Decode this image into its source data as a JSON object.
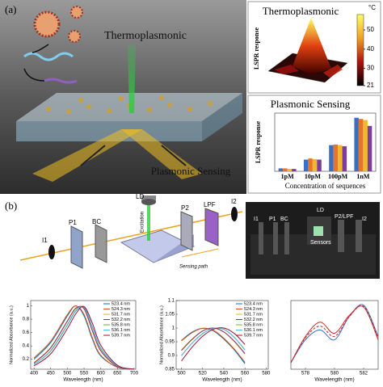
{
  "panel_a": {
    "label": "(a)",
    "thermo_label": "Thermoplasmonic",
    "sensing_label": "Plasmonic Sensing"
  },
  "panel_b": {
    "label": "(b)",
    "setup": {
      "ld": "LD",
      "excitation": "Excitation",
      "i1": "I1",
      "p1": "P1",
      "bc": "BC",
      "p2": "P2",
      "lpf": "LPF",
      "i2": "I2",
      "sensing_path": "Sensing path"
    },
    "photo": {
      "i1": "I1",
      "p1": "P1",
      "bc": "BC",
      "ld": "LD",
      "p2_lpf": "P2/LPF",
      "i2": "I2",
      "sensors": "Sensors"
    }
  },
  "chart_data": [
    {
      "type": "surface",
      "title": "Thermoplasmonic",
      "ylabel": "LSPR response",
      "colorbar_label": "°C",
      "clim": [
        21,
        58
      ],
      "cticks": [
        21,
        30,
        40,
        50
      ],
      "colormap": [
        "#000000",
        "#b01010",
        "#f0a020",
        "#ffff60"
      ]
    },
    {
      "type": "bar",
      "title": "Plasmonic Sensing",
      "ylabel": "LSPR response",
      "xlabel": "Concentration of sequences",
      "categories": [
        "1pM",
        "10pM",
        "100pM",
        "1nM"
      ],
      "ylim": [
        0,
        1
      ],
      "series": [
        {
          "color": "#3b6fc4",
          "values": [
            0.05,
            0.2,
            0.45,
            0.92
          ]
        },
        {
          "color": "#e8742a",
          "values": [
            0.05,
            0.22,
            0.46,
            0.9
          ]
        },
        {
          "color": "#f0b82a",
          "values": [
            0.04,
            0.21,
            0.45,
            0.88
          ]
        },
        {
          "color": "#7b3f99",
          "values": [
            0.04,
            0.2,
            0.43,
            0.78
          ]
        }
      ]
    },
    {
      "type": "line",
      "xlabel": "Wavelength (nm)",
      "ylabel": "Normalized Absorbance (a.u.)",
      "x": [
        400,
        450,
        500,
        525,
        550,
        575,
        600,
        650,
        700
      ],
      "xlim": [
        390,
        705
      ],
      "xticks": [
        400,
        450,
        500,
        550,
        600,
        650,
        700
      ],
      "ylim": [
        0.05,
        1.08
      ],
      "yticks": [
        0.2,
        0.4,
        0.6,
        0.8,
        1
      ],
      "series": [
        {
          "name": "523.4 nm",
          "color": "#0072bd",
          "values": [
            0.2,
            0.45,
            0.85,
            1.0,
            0.85,
            0.5,
            0.25,
            0.08,
            0.05
          ]
        },
        {
          "name": "524.3 nm",
          "color": "#d95319",
          "values": [
            0.22,
            0.47,
            0.87,
            1.0,
            0.87,
            0.52,
            0.26,
            0.08,
            0.05
          ]
        },
        {
          "name": "531.7 nm",
          "color": "#edb120",
          "values": [
            0.15,
            0.38,
            0.78,
            0.97,
            0.95,
            0.62,
            0.32,
            0.09,
            0.05
          ]
        },
        {
          "name": "532.2 nm",
          "color": "#7e2f8e",
          "values": [
            0.14,
            0.37,
            0.77,
            0.96,
            0.96,
            0.63,
            0.33,
            0.09,
            0.05
          ]
        },
        {
          "name": "535.8 nm",
          "color": "#77ac30",
          "values": [
            0.12,
            0.33,
            0.72,
            0.93,
            0.98,
            0.68,
            0.36,
            0.1,
            0.05
          ]
        },
        {
          "name": "536.1 nm",
          "color": "#4dbeee",
          "values": [
            0.12,
            0.32,
            0.71,
            0.92,
            0.98,
            0.69,
            0.37,
            0.1,
            0.05
          ]
        },
        {
          "name": "539.7 nm",
          "color": "#a2142f",
          "values": [
            0.1,
            0.28,
            0.66,
            0.88,
            0.99,
            0.74,
            0.41,
            0.11,
            0.05
          ]
        }
      ]
    },
    {
      "type": "line",
      "xlabel": "Wavelength (nm)",
      "ylabel": "Normalized Absorbance (a.u.)",
      "x": [
        500,
        510,
        520,
        530,
        540,
        550,
        560
      ],
      "xlim": [
        495,
        582
      ],
      "xticks": [
        500,
        520,
        540,
        560,
        580
      ],
      "ylim": [
        0.85,
        1.1
      ],
      "yticks": [
        0.85,
        0.9,
        0.95,
        1,
        1.05,
        1.1
      ],
      "series": [
        {
          "name": "523.4 nm",
          "color": "#0072bd",
          "values": [
            0.955,
            0.985,
            0.999,
            0.99,
            0.96,
            0.92,
            0.87
          ]
        },
        {
          "name": "524.3 nm",
          "color": "#d95319",
          "values": [
            0.953,
            0.983,
            0.999,
            0.992,
            0.963,
            0.923,
            0.875
          ]
        },
        {
          "name": "531.7 nm",
          "color": "#edb120",
          "values": [
            0.92,
            0.96,
            0.99,
            1.0,
            0.985,
            0.95,
            0.905
          ]
        },
        {
          "name": "532.2 nm",
          "color": "#7e2f8e",
          "values": [
            0.918,
            0.958,
            0.989,
            1.0,
            0.986,
            0.952,
            0.907
          ]
        },
        {
          "name": "535.8 nm",
          "color": "#77ac30",
          "values": [
            0.9,
            0.945,
            0.98,
            0.998,
            0.995,
            0.965,
            0.92
          ]
        },
        {
          "name": "536.1 nm",
          "color": "#4dbeee",
          "values": [
            0.899,
            0.944,
            0.979,
            0.998,
            0.996,
            0.966,
            0.921
          ]
        },
        {
          "name": "539.7 nm",
          "color": "#a2142f",
          "values": [
            0.88,
            0.93,
            0.97,
            0.995,
            1.0,
            0.98,
            0.94
          ]
        }
      ]
    },
    {
      "type": "line",
      "xlabel": "Wavelength (nm)",
      "x": [
        577,
        578,
        579,
        580,
        581,
        582,
        583
      ],
      "xlim": [
        577,
        583
      ],
      "xticks": [
        578,
        580,
        582
      ],
      "ylim": [
        0,
        1.05
      ],
      "series": [
        {
          "color": "#3b6fc4",
          "values": [
            0.1,
            0.45,
            0.6,
            0.45,
            0.8,
            0.98,
            0.5
          ]
        },
        {
          "color": "#d62828",
          "values": [
            0.1,
            0.5,
            0.72,
            0.55,
            0.82,
            0.95,
            0.45
          ]
        },
        {
          "color": "#b03030",
          "style": "dashed",
          "values": [
            0.1,
            0.48,
            0.66,
            0.5,
            0.8,
            0.96,
            0.48
          ]
        }
      ]
    }
  ]
}
